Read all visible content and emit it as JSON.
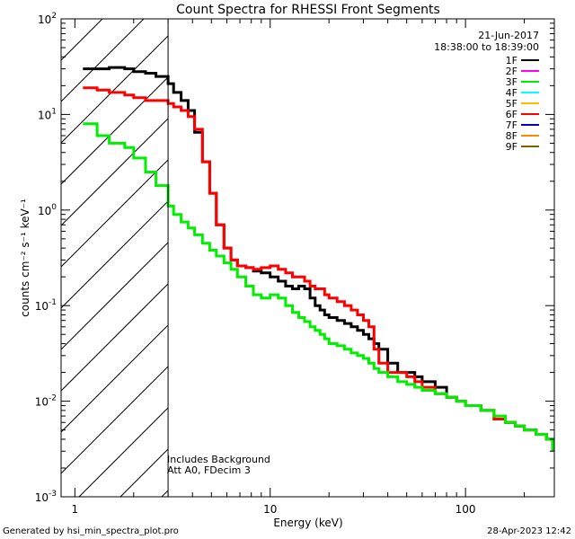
{
  "chart_data": {
    "type": "line",
    "title": "Count Spectra for RHESSI Front Segments",
    "xlabel": "Energy (keV)",
    "ylabel": "counts cm⁻² s⁻¹ keV⁻¹",
    "x_scale": "log",
    "y_scale": "log",
    "xlim": [
      0.85,
      285
    ],
    "ylim": [
      0.001,
      100
    ],
    "x_tick_labels": [
      {
        "value": 1,
        "label": "1"
      },
      {
        "value": 10,
        "label": "10"
      },
      {
        "value": 100,
        "label": "100"
      }
    ],
    "y_tick_labels": [
      {
        "value": 100,
        "base": "10",
        "exp": "2"
      },
      {
        "value": 10,
        "base": "10",
        "exp": "1"
      },
      {
        "value": 1,
        "base": "10",
        "exp": "0"
      },
      {
        "value": 0.1,
        "base": "10",
        "exp": "-1"
      },
      {
        "value": 0.01,
        "base": "10",
        "exp": "-2"
      },
      {
        "value": 0.001,
        "base": "10",
        "exp": "-3"
      }
    ],
    "attenuator_cutoff_kev": 3,
    "annotations": {
      "date": "21-Jun-2017",
      "time_range": "18:38:00 to 18:39:00",
      "background_note": "Includes Background",
      "att_note": "Att A0, FDecim 3"
    },
    "legend": {
      "placement": "top-right",
      "entries": [
        {
          "name": "1F",
          "color": "#000000"
        },
        {
          "name": "2F",
          "color": "#ff00ff"
        },
        {
          "name": "3F",
          "color": "#00ee00"
        },
        {
          "name": "4F",
          "color": "#00ffff"
        },
        {
          "name": "5F",
          "color": "#ffbb00"
        },
        {
          "name": "6F",
          "color": "#ff0000"
        },
        {
          "name": "7F",
          "color": "#0000cc"
        },
        {
          "name": "8F",
          "color": "#ff8800"
        },
        {
          "name": "9F",
          "color": "#806000"
        }
      ]
    },
    "series": [
      {
        "name": "1F",
        "color": "#000000",
        "x": [
          1.1,
          1.3,
          1.5,
          1.8,
          2.0,
          2.3,
          2.6,
          3.0,
          3.2,
          3.5,
          3.8,
          4.1,
          4.5,
          4.9,
          5.3,
          5.8,
          6.3,
          6.8,
          7.5,
          8.2,
          9.0,
          10.0,
          11.0,
          12.0,
          13.0,
          14.0,
          15.0,
          16.0,
          17.0,
          18.0,
          19.0,
          20.0,
          22.0,
          24.0,
          26.0,
          28.0,
          30.0,
          32.0,
          34.0,
          36.0,
          40.0,
          45.0,
          50.0,
          55.0,
          60.0,
          70.0,
          80.0,
          90.0,
          100.0,
          120.0,
          140.0,
          160.0,
          180.0,
          200.0,
          230.0,
          260.0,
          280.0
        ],
        "values": [
          30,
          30,
          31,
          30,
          28,
          27,
          25,
          21,
          17,
          14,
          11,
          6.5,
          3.2,
          1.5,
          0.7,
          0.4,
          0.3,
          0.26,
          0.25,
          0.23,
          0.22,
          0.2,
          0.18,
          0.16,
          0.15,
          0.16,
          0.15,
          0.12,
          0.1,
          0.09,
          0.08,
          0.075,
          0.07,
          0.065,
          0.06,
          0.055,
          0.05,
          0.045,
          0.04,
          0.035,
          0.025,
          0.02,
          0.02,
          0.018,
          0.016,
          0.014,
          0.011,
          0.01,
          0.009,
          0.008,
          0.0065,
          0.006,
          0.0055,
          0.005,
          0.0045,
          0.004,
          0.003
        ]
      },
      {
        "name": "6F",
        "color": "#ff0000",
        "x": [
          1.1,
          1.3,
          1.5,
          1.8,
          2.0,
          2.3,
          2.6,
          3.0,
          3.2,
          3.5,
          3.8,
          4.1,
          4.5,
          4.9,
          5.3,
          5.8,
          6.3,
          6.8,
          7.5,
          8.2,
          9.0,
          10.0,
          11.0,
          12.0,
          13.0,
          14.0,
          15.0,
          16.0,
          17.0,
          18.0,
          19.0,
          20.0,
          22.0,
          24.0,
          26.0,
          28.0,
          30.0,
          32.0,
          34.0,
          36.0,
          40.0,
          45.0,
          50.0,
          55.0,
          60.0,
          70.0,
          80.0,
          90.0,
          100.0,
          120.0,
          140.0,
          160.0,
          180.0,
          200.0,
          230.0,
          260.0,
          280.0
        ],
        "values": [
          19,
          18,
          17,
          16,
          15,
          14,
          14,
          13,
          12,
          11,
          9.5,
          7.0,
          3.2,
          1.5,
          0.7,
          0.4,
          0.3,
          0.26,
          0.25,
          0.24,
          0.25,
          0.26,
          0.24,
          0.22,
          0.2,
          0.2,
          0.18,
          0.16,
          0.15,
          0.15,
          0.13,
          0.12,
          0.11,
          0.1,
          0.09,
          0.08,
          0.07,
          0.06,
          0.035,
          0.025,
          0.02,
          0.02,
          0.018,
          0.016,
          0.014,
          0.012,
          0.011,
          0.01,
          0.009,
          0.008,
          0.0065,
          0.006,
          0.0055,
          0.005,
          0.0045,
          0.004,
          0.003
        ]
      },
      {
        "name": "3F",
        "color": "#00ee00",
        "x": [
          1.1,
          1.3,
          1.5,
          1.8,
          2.0,
          2.3,
          2.6,
          3.0,
          3.2,
          3.5,
          3.8,
          4.1,
          4.5,
          4.9,
          5.3,
          5.8,
          6.3,
          6.8,
          7.5,
          8.2,
          9.0,
          10.0,
          11.0,
          12.0,
          13.0,
          14.0,
          15.0,
          16.0,
          17.0,
          18.0,
          19.0,
          20.0,
          22.0,
          24.0,
          26.0,
          28.0,
          30.0,
          32.0,
          34.0,
          36.0,
          40.0,
          45.0,
          50.0,
          55.0,
          60.0,
          70.0,
          80.0,
          90.0,
          100.0,
          120.0,
          140.0,
          160.0,
          180.0,
          200.0,
          230.0,
          260.0,
          280.0
        ],
        "values": [
          8,
          6,
          5,
          4.5,
          3.5,
          2.5,
          1.8,
          1.1,
          0.9,
          0.75,
          0.65,
          0.55,
          0.45,
          0.38,
          0.33,
          0.28,
          0.24,
          0.2,
          0.16,
          0.13,
          0.12,
          0.13,
          0.12,
          0.1,
          0.085,
          0.075,
          0.068,
          0.06,
          0.055,
          0.05,
          0.045,
          0.04,
          0.038,
          0.035,
          0.032,
          0.03,
          0.028,
          0.025,
          0.022,
          0.02,
          0.018,
          0.016,
          0.015,
          0.014,
          0.013,
          0.012,
          0.011,
          0.01,
          0.009,
          0.008,
          0.007,
          0.006,
          0.0055,
          0.005,
          0.0045,
          0.004,
          0.003
        ]
      }
    ]
  },
  "footer": {
    "generated_by": "Generated by hsi_min_spectra_plot.pro",
    "timestamp": "28-Apr-2023 12:42"
  }
}
